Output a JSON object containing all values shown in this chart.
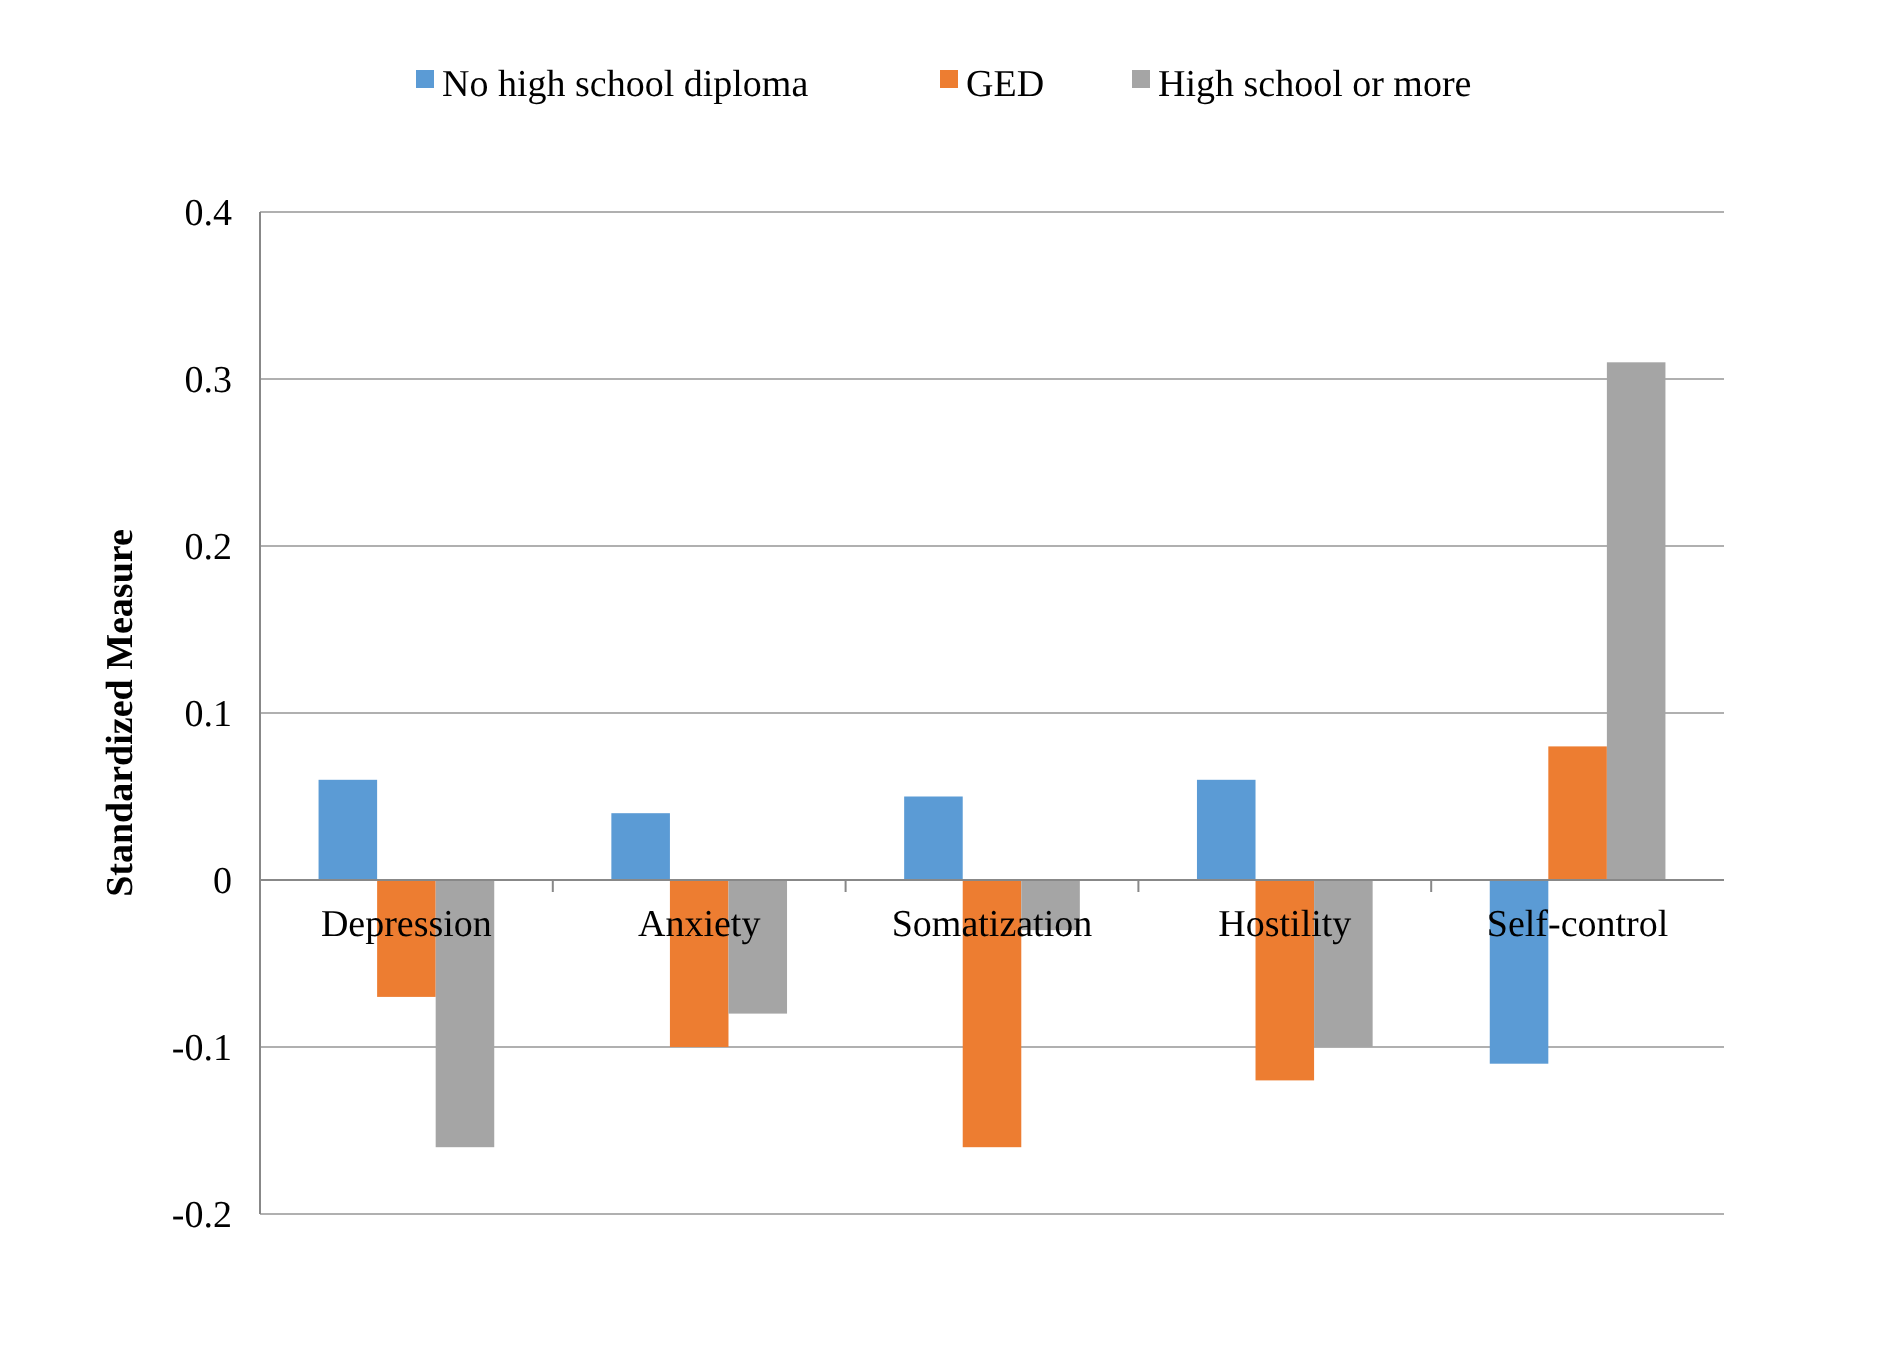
{
  "chart_data": {
    "type": "bar",
    "ylabel": "Standardized Measure",
    "categories": [
      "Depression",
      "Anxiety",
      "Somatization",
      "Hostility",
      "Self-control"
    ],
    "series": [
      {
        "name": "No high school diploma",
        "color": "#5b9bd5",
        "values": [
          0.06,
          0.04,
          0.05,
          0.06,
          -0.11
        ]
      },
      {
        "name": "GED",
        "color": "#ed7d31",
        "values": [
          -0.07,
          -0.1,
          -0.16,
          -0.12,
          0.08
        ]
      },
      {
        "name": "High school or more",
        "color": "#a5a5a5",
        "values": [
          -0.16,
          -0.08,
          -0.03,
          -0.1,
          0.31
        ]
      }
    ],
    "ylim": [
      -0.2,
      0.4
    ],
    "yticks": [
      {
        "value": -0.2,
        "label": "-0.2"
      },
      {
        "value": -0.1,
        "label": "-0.1"
      },
      0,
      0.1,
      0.2,
      0.3,
      0.4
    ],
    "grid": "y",
    "legend": "top"
  }
}
